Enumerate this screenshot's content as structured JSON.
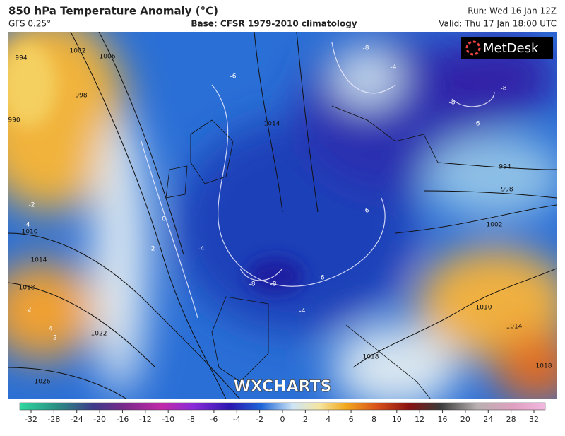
{
  "header": {
    "title": "850 hPa Temperature Anomaly (°C)",
    "model": "GFS 0.25°",
    "base": "Base: CFSR 1979-2010 climatology",
    "run": "Run: Wed 16 Jan 12Z",
    "valid": "Valid: Thu 17 Jan 18:00 UTC"
  },
  "map": {
    "logo": "MetDesk",
    "watermark": "WXCHARTS",
    "isobar_labels": [
      "994",
      "1002",
      "1006",
      "998",
      "990",
      "1014",
      "1010",
      "1014",
      "1018",
      "1022",
      "1026",
      "994",
      "998",
      "1002",
      "1010",
      "1014",
      "1018",
      "1018"
    ],
    "anomaly_labels": [
      "-8",
      "-4",
      "-6",
      "-8",
      "-8",
      "-6",
      "-2",
      "-4",
      "0",
      "-2",
      "-4",
      "-6",
      "-6",
      "-8",
      "-8",
      "-4",
      "4",
      "2",
      "-2"
    ]
  },
  "colorbar": {
    "ticks": [
      -32,
      -28,
      -24,
      -20,
      -16,
      -12,
      -10,
      -8,
      -6,
      -4,
      -2,
      0,
      2,
      4,
      6,
      8,
      10,
      12,
      16,
      20,
      24,
      28,
      32
    ]
  }
}
